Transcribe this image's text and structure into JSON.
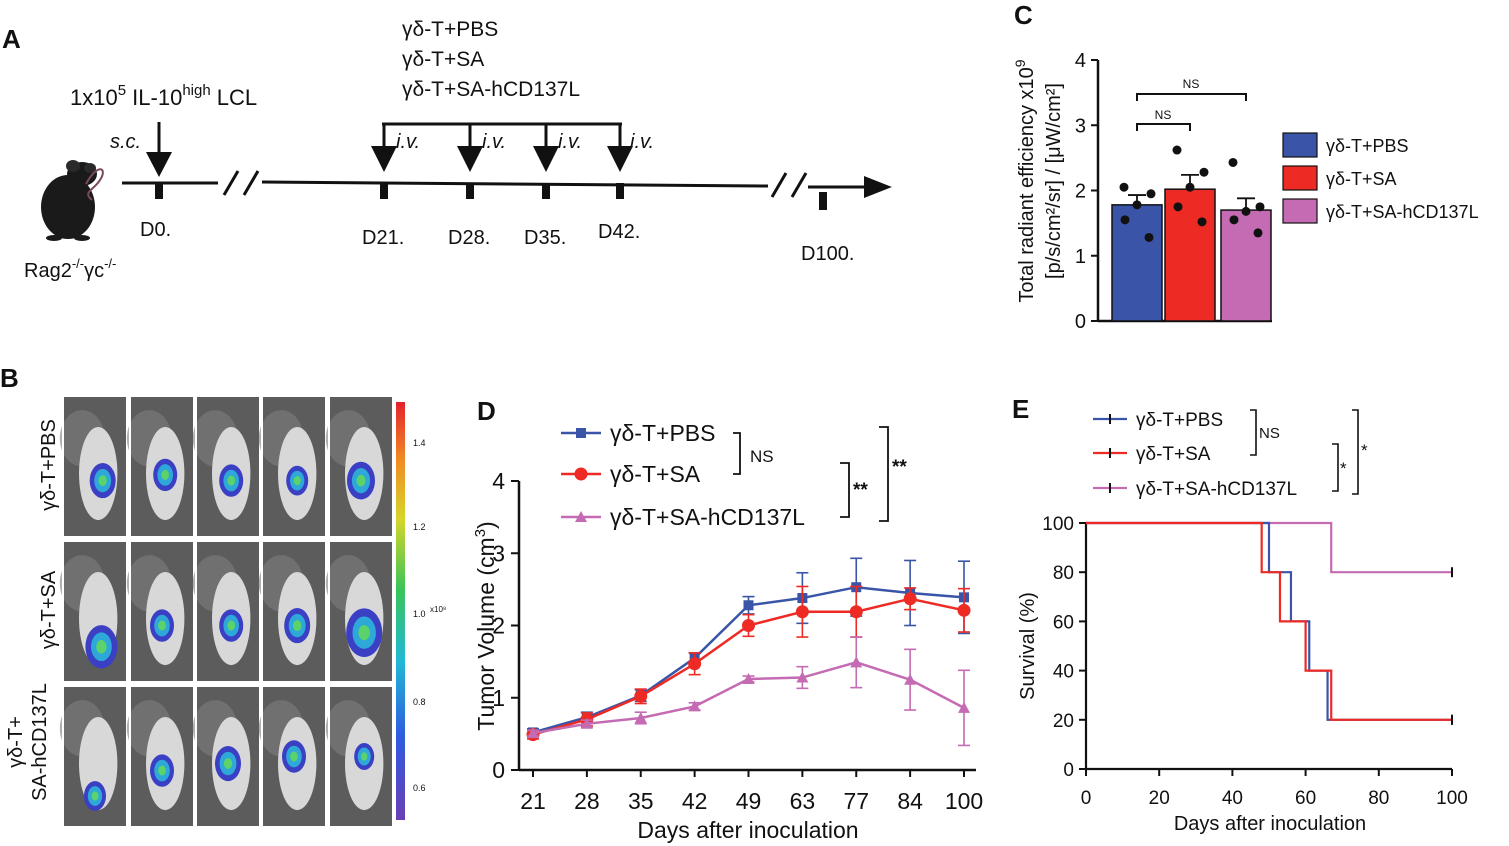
{
  "panels": {
    "a": {
      "letter": "A",
      "cells_label": "1x10",
      "cells_exp": "5",
      "cells_label2": " IL-10",
      "cells_high": "high",
      "cells_label3": " LCL",
      "sc": "s.c.",
      "iv": "i.v.",
      "groups": [
        "γδ-T+PBS",
        "γδ-T+SA",
        "γδ-T+SA-hCD137L"
      ],
      "days": [
        "D0.",
        "D21.",
        "D28.",
        "D35.",
        "D42.",
        "D100."
      ],
      "mouse_base": "Rag2",
      "mouse_sup1": "-/-",
      "mouse_mid": "γc",
      "mouse_sup2": "-/-"
    },
    "b": {
      "letter": "B",
      "row_labels": [
        "γδ-T+PBS",
        "γδ-T+SA",
        "γδ-T+",
        "SA-hCD137L"
      ],
      "colorbar_ticks": [
        "1.4",
        "1.2",
        "1.0",
        "0.8",
        "0.6"
      ],
      "colorbar_unit": "x10⁸"
    },
    "c": {
      "letter": "C"
    },
    "d": {
      "letter": "D"
    },
    "e": {
      "letter": "E"
    }
  },
  "colors": {
    "pbs": "#3a55a7",
    "sa": "#ee2a24",
    "hcd": "#c46bb3"
  },
  "chart_data": [
    {
      "id": "C",
      "type": "bar",
      "categories": [
        "γδ-T+PBS",
        "γδ-T+SA",
        "γδ-T+SA-hCD137L"
      ],
      "values": [
        1.78,
        2.02,
        1.7
      ],
      "errors": [
        0.15,
        0.22,
        0.18
      ],
      "points": [
        [
          2.05,
          1.95,
          1.78,
          1.55,
          1.28
        ],
        [
          2.62,
          2.28,
          2.05,
          1.75,
          1.52
        ],
        [
          2.43,
          1.75,
          1.68,
          1.55,
          1.35
        ]
      ],
      "ylim": [
        0,
        4
      ],
      "yticks": [
        "0",
        "1",
        "2",
        "3",
        "4"
      ],
      "ylabel_line1": "Total radiant efficiency x10",
      "ylabel_exp1": "9",
      "ylabel_line2": "[p/s/cm²/sr] / [μW/cm²]",
      "significance": [
        "NS",
        "NS"
      ]
    },
    {
      "id": "D",
      "type": "line",
      "x": [
        "21",
        "28",
        "35",
        "42",
        "49",
        "63",
        "77",
        "84",
        "100"
      ],
      "series": [
        {
          "name": "γδ-T+PBS",
          "values": [
            0.52,
            0.73,
            1.03,
            1.55,
            2.28,
            2.38,
            2.53,
            2.45,
            2.39
          ],
          "errors": [
            0.05,
            0.07,
            0.08,
            0.07,
            0.12,
            0.35,
            0.4,
            0.45,
            0.5
          ]
        },
        {
          "name": "γδ-T+SA",
          "values": [
            0.49,
            0.7,
            1.02,
            1.47,
            2.0,
            2.19,
            2.19,
            2.37,
            2.21
          ],
          "errors": [
            0.06,
            0.09,
            0.1,
            0.15,
            0.15,
            0.35,
            0.35,
            0.15,
            0.3
          ]
        },
        {
          "name": "γδ-T+SA-hCD137L",
          "values": [
            0.51,
            0.64,
            0.72,
            0.88,
            1.26,
            1.28,
            1.49,
            1.25,
            0.86
          ],
          "errors": [
            0.04,
            0.05,
            0.08,
            0.05,
            0.04,
            0.15,
            0.35,
            0.42,
            0.52
          ]
        }
      ],
      "ylim": [
        0,
        4
      ],
      "yticks": [
        "0",
        "1",
        "2",
        "3",
        "4"
      ],
      "xlabel": "Days after inoculation",
      "ylabel": "Tumor Volume (cm",
      "ylabel_exp": "3",
      "ylabel_close": ")",
      "significance": [
        "NS",
        "**",
        "**"
      ]
    },
    {
      "id": "E",
      "type": "line",
      "step": true,
      "series": [
        {
          "name": "γδ-T+PBS",
          "x": [
            0,
            50,
            56,
            61,
            66,
            100
          ],
          "values": [
            100,
            80,
            60,
            40,
            20,
            20
          ]
        },
        {
          "name": "γδ-T+SA",
          "x": [
            0,
            48,
            53,
            60,
            67,
            100
          ],
          "values": [
            100,
            80,
            60,
            40,
            20,
            20
          ]
        },
        {
          "name": "γδ-T+SA-hCD137L",
          "x": [
            0,
            67,
            100
          ],
          "values": [
            100,
            80,
            80
          ]
        }
      ],
      "xlim": [
        0,
        100
      ],
      "ylim": [
        0,
        100
      ],
      "xticks": [
        "0",
        "20",
        "40",
        "60",
        "80",
        "100"
      ],
      "yticks": [
        "0",
        "20",
        "40",
        "60",
        "80",
        "100"
      ],
      "xlabel": "Days after inoculation",
      "ylabel": "Survival (%)",
      "significance": [
        "NS",
        "*",
        "*"
      ]
    }
  ]
}
